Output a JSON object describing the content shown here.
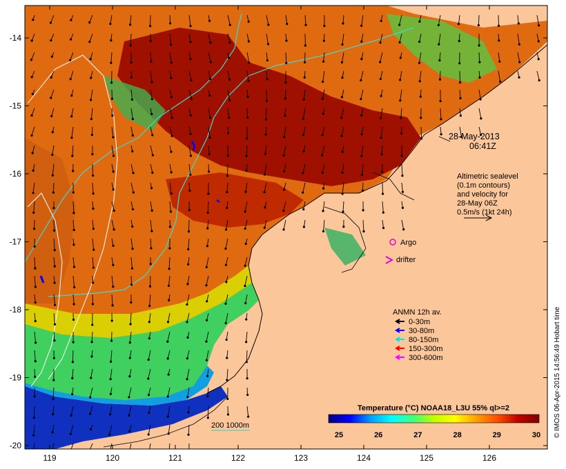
{
  "map": {
    "date": "28-May-2013",
    "time": "06:41Z",
    "altimetry_lines": [
      "Altimetric sealevel",
      "(0.1m contours)",
      "and velocity for",
      "28-May 06Z",
      "0.5m/s (1kt 24h)"
    ],
    "argo_label": "Argo",
    "drifter_label": "drifter",
    "depth_label": "200  1000m",
    "credit": "© IMOS 06-Apr-2015 14:56:49 Hobart time",
    "anmn": {
      "title": "ANMN 12h av.",
      "entries": [
        {
          "label": "0-30m",
          "color": "#000000"
        },
        {
          "label": "30-80m",
          "color": "#0000ff"
        },
        {
          "label": "80-150m",
          "color": "#00e5e5"
        },
        {
          "label": "150-300m",
          "color": "#ff0000"
        },
        {
          "label": "300-600m",
          "color": "#ff00ff"
        }
      ]
    },
    "colorbar": {
      "title": "Temperature (°C) NOAA18_L3U 55% ql>=2",
      "ticks": [
        "25",
        "26",
        "27",
        "28",
        "29",
        "30"
      ],
      "stops": [
        "#000080",
        "#0000ff",
        "#00a0ff",
        "#00ffff",
        "#40ff80",
        "#c0ff00",
        "#ffff00",
        "#ffa000",
        "#ff5000",
        "#c00000",
        "#800000"
      ]
    },
    "axes": {
      "x_ticks": [
        "119",
        "120",
        "121",
        "122",
        "123",
        "124",
        "125",
        "126"
      ],
      "y_ticks": [
        "-14",
        "-15",
        "-16",
        "-17",
        "-18",
        "-19",
        "-20"
      ]
    },
    "colors": {
      "land": "#fac69a",
      "argo": "#e000e0",
      "contour": "#40d8d0"
    }
  }
}
